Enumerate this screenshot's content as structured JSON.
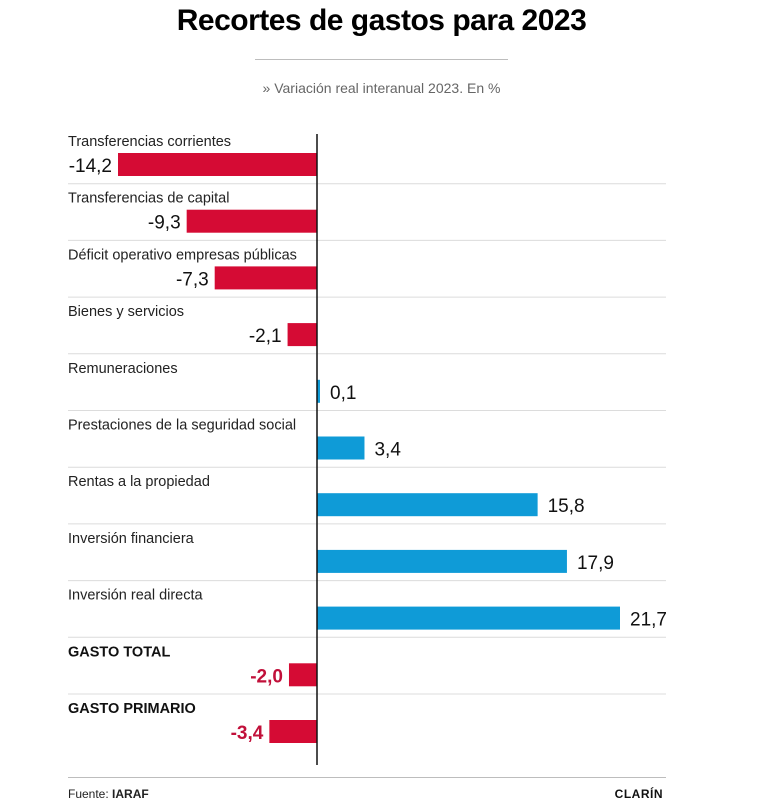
{
  "chart_data": {
    "type": "bar",
    "orientation": "horizontal",
    "title": "Recortes de gastos para 2023",
    "subtitle": "» Variación real interanual 2023. En %",
    "categories": [
      "Transferencias corrientes",
      "Transferencias de capital",
      "Déficit operativo empresas públicas",
      "Bienes y servicios",
      "Remuneraciones",
      "Prestaciones de la seguridad social",
      "Rentas a la propiedad",
      "Inversión financiera",
      "Inversión real directa",
      "GASTO TOTAL",
      "GASTO PRIMARIO"
    ],
    "values": [
      -14.2,
      -9.3,
      -7.3,
      -2.1,
      0.1,
      3.4,
      15.8,
      17.9,
      21.7,
      -2.0,
      -3.4
    ],
    "value_labels": [
      "-14,2",
      "-9,3",
      "-7,3",
      "-2,1",
      "0,1",
      "3,4",
      "15,8",
      "17,9",
      "21,7",
      "-2,0",
      "-3,4"
    ],
    "highlighted": [
      false,
      false,
      false,
      false,
      false,
      false,
      false,
      false,
      false,
      true,
      true
    ],
    "xlim": [
      -14.2,
      21.7
    ],
    "grid": false,
    "colors": {
      "negative": "#d50b34",
      "positive": "#0f9bd7",
      "highlight_text": "#c1103a"
    }
  },
  "footer": {
    "source_label": "Fuente:",
    "source_name": "IARAF",
    "brand": "CLARÍN"
  }
}
